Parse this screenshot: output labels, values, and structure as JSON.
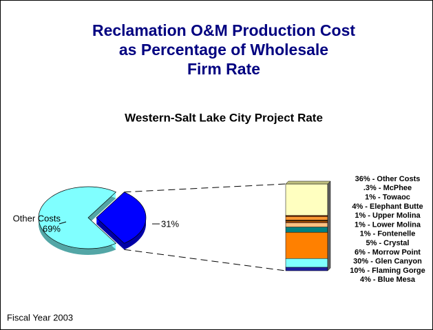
{
  "chart_data": {
    "type": "pie",
    "title": [
      "Reclamation O&M Production Cost",
      "as Percentage of Wholesale",
      "Firm Rate"
    ],
    "subtitle": "Western-Salt Lake City Project Rate",
    "footnote": "Fiscal Year 2003",
    "categories": [
      "Other Costs",
      null
    ],
    "values": [
      69,
      31
    ],
    "value_labels": [
      "69%",
      "31%"
    ],
    "colors": [
      "#80ffff",
      "#0000ff"
    ],
    "breakout": {
      "type": "bar",
      "values": [
        36,
        0.3,
        1,
        4,
        1,
        1,
        1,
        5,
        6,
        30,
        10,
        4
      ],
      "value_labels": [
        "36% - Other Costs",
        ".3% - McPhee",
        "1% - Towaoc",
        "4% - Elephant Butte",
        "1% - Upper Molina",
        "1% - Lower Molina",
        "1% - Fontenelle",
        "5% - Crystal",
        "6% - Morrow Point",
        "30% - Glen Canyon",
        "10% - Flaming Gorge",
        "4% - Blue Mesa"
      ],
      "colors": [
        "#ffffc0",
        "#808040",
        "#c04000",
        "#ff9933",
        "#804000",
        "#ff8000",
        "#c04000",
        "#ffc080",
        "#008080",
        "#ff8000",
        "#80ffff",
        "#2020a0"
      ]
    }
  }
}
